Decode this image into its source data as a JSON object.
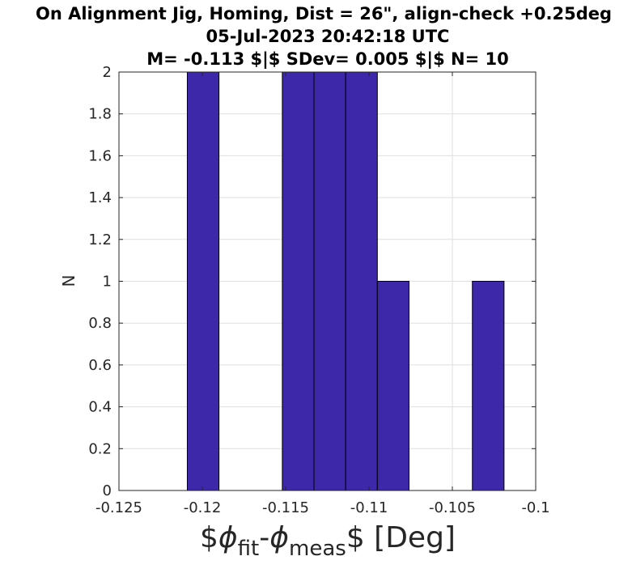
{
  "chart_data": {
    "type": "bar",
    "title_lines": [
      "On Alignment Jig, Homing, Dist = 26\", align-check +0.25deg",
      "05-Jul-2023 20:42:18 UTC",
      "M= -0.113 $|$ SDev= 0.005 $|$ N= 10"
    ],
    "ylabel": "N",
    "xlabel": {
      "prefix": "$",
      "phi1": "ϕ",
      "sub1": "fit",
      "dash": "-",
      "phi2": "ϕ",
      "sub2": "meas",
      "suffix": "$ [Deg]"
    },
    "xlim": [
      -0.125,
      -0.1
    ],
    "ylim": [
      0,
      2
    ],
    "xticks": [
      -0.125,
      -0.12,
      -0.115,
      -0.11,
      -0.105,
      -0.1
    ],
    "xtick_labels": [
      "-0.125",
      "-0.12",
      "-0.115",
      "-0.11",
      "-0.105",
      "-0.1"
    ],
    "yticks": [
      0,
      0.2,
      0.4,
      0.6,
      0.8,
      1,
      1.2,
      1.4,
      1.6,
      1.8,
      2
    ],
    "ytick_labels": [
      "0",
      "0.2",
      "0.4",
      "0.6",
      "0.8",
      "1",
      "1.2",
      "1.4",
      "1.6",
      "1.8",
      "2"
    ],
    "grid": true,
    "bar_color": "#3c28a8",
    "bins": [
      {
        "x0": -0.1209,
        "x1": -0.119,
        "count": 2
      },
      {
        "x0": -0.1152,
        "x1": -0.1133,
        "count": 2
      },
      {
        "x0": -0.1133,
        "x1": -0.1114,
        "count": 2
      },
      {
        "x0": -0.1114,
        "x1": -0.1095,
        "count": 2
      },
      {
        "x0": -0.1095,
        "x1": -0.1076,
        "count": 1
      },
      {
        "x0": -0.1038,
        "x1": -0.1019,
        "count": 1
      }
    ]
  }
}
